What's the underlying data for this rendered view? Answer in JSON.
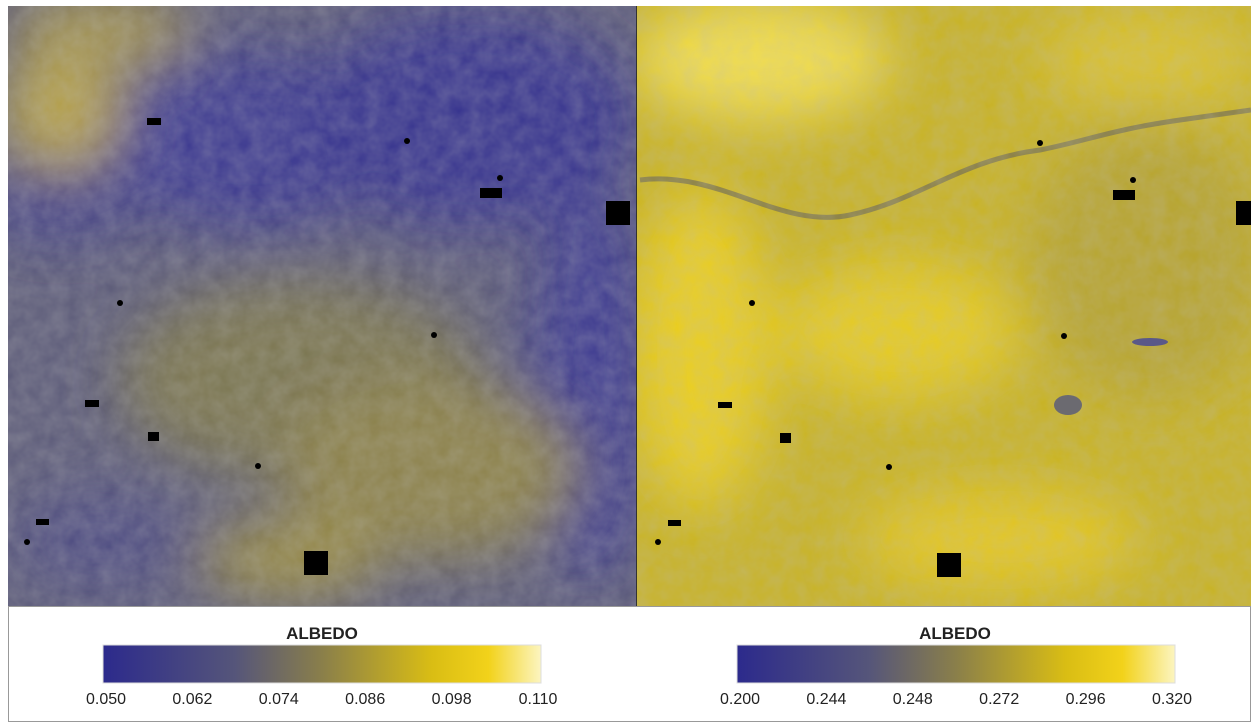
{
  "panels": [
    {
      "colorbar": {
        "title": "ALBEDO",
        "tick_labels": [
          "0.050",
          "0.062",
          "0.074",
          "0.086",
          "0.098",
          "0.110"
        ]
      }
    },
    {
      "colorbar": {
        "title": "ALBEDO",
        "tick_labels": [
          "0.200",
          "0.244",
          "0.248",
          "0.272",
          "0.296",
          "0.320"
        ]
      }
    }
  ]
}
